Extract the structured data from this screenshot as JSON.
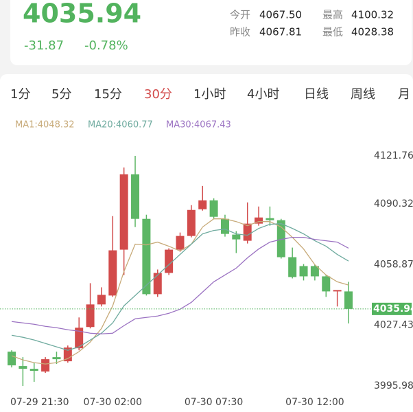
{
  "quote": {
    "price": "4035.94",
    "change": "-31.87",
    "change_pct": "-0.78%",
    "stats": [
      {
        "label": "今开",
        "value": "4067.50"
      },
      {
        "label": "最高",
        "value": "4100.32"
      },
      {
        "label": "昨收",
        "value": "4067.81"
      },
      {
        "label": "最低",
        "value": "4028.38"
      }
    ]
  },
  "tabs": {
    "items": [
      "1分",
      "5分",
      "15分",
      "30分",
      "1小时",
      "4小时",
      "日线",
      "周线",
      "月"
    ],
    "active": 3
  },
  "chart_data": {
    "type": "candlestick",
    "x": [
      "07-29 21:30",
      null,
      null,
      null,
      null,
      null,
      null,
      null,
      null,
      "07-30 02:00",
      null,
      null,
      null,
      null,
      null,
      null,
      null,
      null,
      "07-30 07:30",
      null,
      null,
      null,
      null,
      null,
      null,
      null,
      null,
      "07-30 12:00",
      null,
      null,
      null
    ],
    "open": [
      4013.75,
      4006.28,
      4004.86,
      4003.44,
      4010.9,
      4008.77,
      4015.52,
      4026.54,
      4038.26,
      4042.88,
      4066.68,
      4105.77,
      4082.67,
      4043.59,
      4054.6,
      4066.68,
      4073.79,
      4087.65,
      4092.27,
      4082.67,
      4074.5,
      4071.3,
      4080.19,
      4083.03,
      4081.96,
      4062.78,
      4058.16,
      4058.16,
      4052.83,
      4045.01,
      4045.01
    ],
    "high": [
      4014.46,
      4010.9,
      4008.06,
      4010.9,
      4013.75,
      4016.94,
      4031.51,
      4049.28,
      4047.14,
      4084.09,
      4109.32,
      4115.36,
      4084.81,
      4056.38,
      4067.4,
      4075.57,
      4089.78,
      4099.73,
      4093.33,
      4084.81,
      4076.28,
      4091.2,
      4089.07,
      4089.07,
      4082.67,
      4067.75,
      4059.22,
      4058.87,
      4053.54,
      4045.72,
      4049.99
    ],
    "low": [
      4005.57,
      3995.98,
      3998.11,
      4002.73,
      4007.35,
      4008.06,
      4014.46,
      4025.83,
      4037.19,
      4042.17,
      4053.54,
      4078.41,
      4042.88,
      4042.17,
      4053.54,
      4065.62,
      4073.08,
      4086.94,
      4082.67,
      4073.44,
      4064.91,
      4069.88,
      4079.12,
      4079.12,
      4062.07,
      4051.76,
      4050.7,
      4050.7,
      4042.17,
      4037.19,
      4028.38
    ],
    "close": [
      4006.64,
      4004.86,
      4003.8,
      4009.84,
      4009.84,
      4015.88,
      4026.18,
      4038.26,
      4043.23,
      4066.33,
      4105.77,
      4082.67,
      4043.59,
      4054.6,
      4066.68,
      4073.79,
      4087.29,
      4092.27,
      4083.74,
      4074.86,
      4072.01,
      4080.19,
      4083.38,
      4081.96,
      4062.78,
      4052.47,
      4052.83,
      4052.83,
      4045.01,
      4045.72,
      4035.94
    ],
    "up_color": "#d24b4b",
    "down_color": "#5cb665",
    "series": [
      {
        "name": "MA1:4048.32",
        "color": "#c8ab7a",
        "values": [
          4011.61,
          4009.48,
          4008.06,
          4007.35,
          4008.06,
          4010.19,
          4013.75,
          4018.72,
          4025.83,
          4037.55,
          4055.32,
          4069.53,
          4069.17,
          4070.59,
          4068.46,
          4065.97,
          4069.53,
          4078.41,
          4082.67,
          4082.67,
          4081.25,
          4079.12,
          4081.25,
          4081.25,
          4078.41,
          4073.08,
          4067.04,
          4058.87,
          4053.54,
          4049.99,
          4048.32
        ]
      },
      {
        "name": "MA20:4060.77",
        "color": "#6fab9f",
        "values": [
          4022.27,
          4021.21,
          4019.79,
          4018.01,
          4016.23,
          4014.46,
          4016.23,
          4019.79,
          4023.34,
          4028.67,
          4037.55,
          4042.88,
          4048.21,
          4053.54,
          4058.87,
          4064.2,
          4069.53,
          4074.86,
          4076.63,
          4077.34,
          4074.86,
          4074.15,
          4077.7,
          4079.83,
          4080.19,
          4077.7,
          4074.86,
          4071.3,
          4068.46,
          4064.2,
          4060.77
        ]
      },
      {
        "name": "MA30:4067.43",
        "color": "#9b72c2",
        "values": [
          4029.38,
          4028.67,
          4027.96,
          4026.89,
          4026.18,
          4025.11,
          4024.4,
          4023.34,
          4022.98,
          4023.34,
          4027.25,
          4030.8,
          4031.51,
          4032.22,
          4033.64,
          4035.77,
          4039.33,
          4044.66,
          4049.99,
          4053.54,
          4057.09,
          4062.42,
          4067.04,
          4070.59,
          4072.01,
          4073.08,
          4073.08,
          4072.01,
          4071.3,
          4070.59,
          4067.43
        ]
      }
    ],
    "last_price": 4035.94,
    "ylim": [
      3995.98,
      4121.76
    ],
    "yticks": [
      4121.76,
      4090.32,
      4058.87,
      4027.43,
      3995.98
    ],
    "grid": false
  }
}
